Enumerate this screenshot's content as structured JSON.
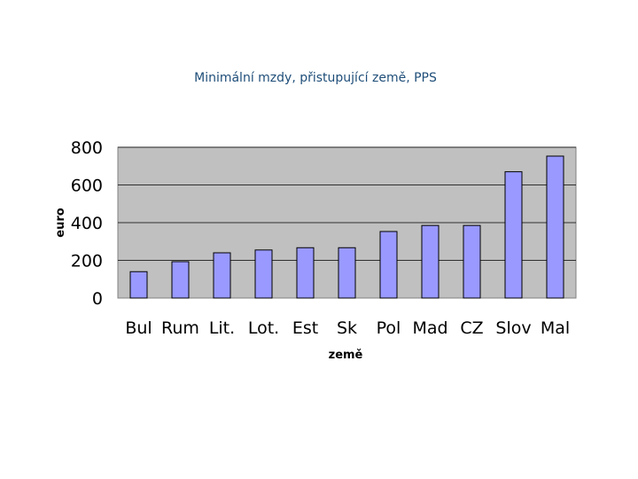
{
  "chart_data": {
    "type": "bar",
    "title": "Minimální mzdy, přistupující země, PPS",
    "xlabel": "země",
    "ylabel": "euro",
    "categories": [
      "Bul",
      "Rum",
      "Lit.",
      "Lot.",
      "Est",
      "Sk",
      "Pol",
      "Mad",
      "CZ",
      "Slov",
      "Mal"
    ],
    "values": [
      140,
      193,
      240,
      255,
      267,
      267,
      353,
      385,
      385,
      670,
      753
    ],
    "ylim": [
      0,
      800
    ],
    "yticks": [
      0,
      200,
      400,
      600,
      800
    ],
    "grid": true,
    "legend": "none",
    "colors": {
      "bar_fill": "#9999ff",
      "bar_stroke": "#000000",
      "plot_background": "#c0c0c0",
      "grid": "#000000",
      "title_text": "#1f4e79"
    }
  }
}
